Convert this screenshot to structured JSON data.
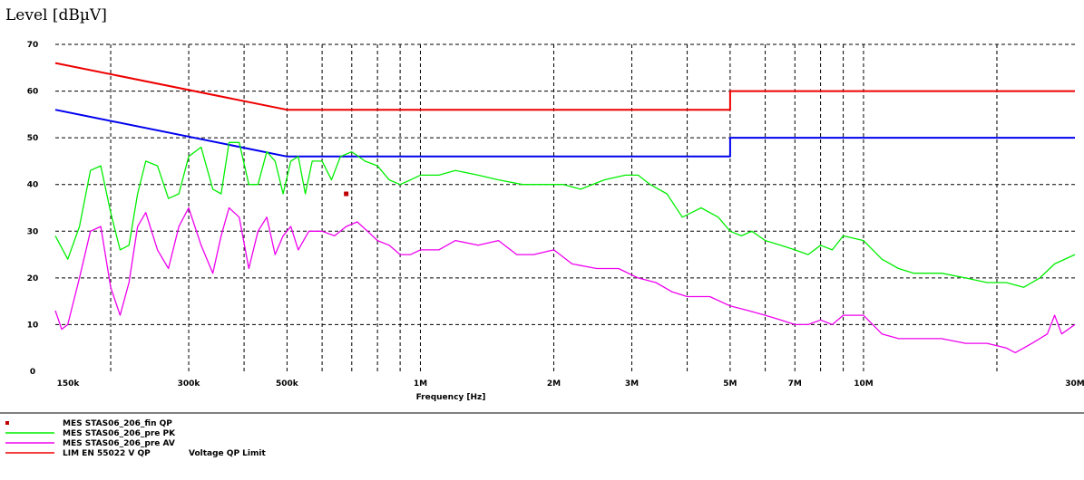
{
  "chart_data": {
    "type": "line",
    "title": "Level [dBµV]",
    "xlabel": "Frequency [Hz]",
    "x_scale": "log",
    "xlim_hz": [
      150000,
      30000000
    ],
    "ylim": [
      0,
      70
    ],
    "y_ticks": [
      0,
      10,
      20,
      30,
      40,
      50,
      60,
      70
    ],
    "x_ticks": [
      {
        "hz": 150000,
        "label": "150k"
      },
      {
        "hz": 300000,
        "label": "300k"
      },
      {
        "hz": 500000,
        "label": "500k"
      },
      {
        "hz": 1000000,
        "label": "1M"
      },
      {
        "hz": 2000000,
        "label": "2M"
      },
      {
        "hz": 3000000,
        "label": "3M"
      },
      {
        "hz": 5000000,
        "label": "5M"
      },
      {
        "hz": 7000000,
        "label": "7M"
      },
      {
        "hz": 10000000,
        "label": "10M"
      },
      {
        "hz": 30000000,
        "label": "30M"
      }
    ],
    "grid": true,
    "series": [
      {
        "name": "MES STAS06_206_fin QP",
        "kind": "marker",
        "color": "#c00000",
        "points": [
          [
            680000,
            38
          ]
        ]
      },
      {
        "name": "MES STAS06_206_pre PK",
        "kind": "line",
        "color": "#00ee00",
        "points": [
          [
            150000,
            29
          ],
          [
            160000,
            24
          ],
          [
            170000,
            31
          ],
          [
            180000,
            43
          ],
          [
            190000,
            44
          ],
          [
            200000,
            34
          ],
          [
            210000,
            26
          ],
          [
            220000,
            27
          ],
          [
            230000,
            38
          ],
          [
            240000,
            45
          ],
          [
            255000,
            44
          ],
          [
            270000,
            37
          ],
          [
            285000,
            38
          ],
          [
            300000,
            46
          ],
          [
            320000,
            48
          ],
          [
            340000,
            39
          ],
          [
            355000,
            38
          ],
          [
            370000,
            49
          ],
          [
            390000,
            49
          ],
          [
            410000,
            40
          ],
          [
            430000,
            40
          ],
          [
            450000,
            47
          ],
          [
            470000,
            45
          ],
          [
            490000,
            38
          ],
          [
            510000,
            45
          ],
          [
            530000,
            46
          ],
          [
            550000,
            38
          ],
          [
            570000,
            45
          ],
          [
            600000,
            45
          ],
          [
            630000,
            41
          ],
          [
            660000,
            46
          ],
          [
            700000,
            47
          ],
          [
            750000,
            45
          ],
          [
            800000,
            44
          ],
          [
            850000,
            41
          ],
          [
            900000,
            40
          ],
          [
            950000,
            41
          ],
          [
            1000000,
            42
          ],
          [
            1100000,
            42
          ],
          [
            1200000,
            43
          ],
          [
            1350000,
            42
          ],
          [
            1500000,
            41
          ],
          [
            1700000,
            40
          ],
          [
            1900000,
            40
          ],
          [
            2100000,
            40
          ],
          [
            2300000,
            39
          ],
          [
            2600000,
            41
          ],
          [
            2900000,
            42
          ],
          [
            3100000,
            42
          ],
          [
            3300000,
            40
          ],
          [
            3600000,
            38
          ],
          [
            3900000,
            33
          ],
          [
            4300000,
            35
          ],
          [
            4700000,
            33
          ],
          [
            5000000,
            30
          ],
          [
            5300000,
            29
          ],
          [
            5600000,
            30
          ],
          [
            6000000,
            28
          ],
          [
            6500000,
            27
          ],
          [
            7000000,
            26
          ],
          [
            7500000,
            25
          ],
          [
            8000000,
            27
          ],
          [
            8500000,
            26
          ],
          [
            9000000,
            29
          ],
          [
            10000000,
            28
          ],
          [
            11000000,
            24
          ],
          [
            12000000,
            22
          ],
          [
            13000000,
            21
          ],
          [
            15000000,
            21
          ],
          [
            17000000,
            20
          ],
          [
            19000000,
            19
          ],
          [
            21000000,
            19
          ],
          [
            23000000,
            18
          ],
          [
            25000000,
            20
          ],
          [
            27000000,
            23
          ],
          [
            30000000,
            25
          ]
        ]
      },
      {
        "name": "MES STAS06_206_pre AV",
        "kind": "line",
        "color": "#ee00ee",
        "points": [
          [
            150000,
            13
          ],
          [
            155000,
            9
          ],
          [
            160000,
            10
          ],
          [
            170000,
            20
          ],
          [
            180000,
            30
          ],
          [
            190000,
            31
          ],
          [
            200000,
            18
          ],
          [
            210000,
            12
          ],
          [
            220000,
            19
          ],
          [
            230000,
            31
          ],
          [
            240000,
            34
          ],
          [
            255000,
            26
          ],
          [
            270000,
            22
          ],
          [
            285000,
            31
          ],
          [
            300000,
            35
          ],
          [
            320000,
            27
          ],
          [
            340000,
            21
          ],
          [
            355000,
            29
          ],
          [
            370000,
            35
          ],
          [
            390000,
            33
          ],
          [
            410000,
            22
          ],
          [
            430000,
            30
          ],
          [
            450000,
            33
          ],
          [
            470000,
            25
          ],
          [
            490000,
            29
          ],
          [
            510000,
            31
          ],
          [
            530000,
            26
          ],
          [
            560000,
            30
          ],
          [
            600000,
            30
          ],
          [
            640000,
            29
          ],
          [
            680000,
            31
          ],
          [
            720000,
            32
          ],
          [
            760000,
            30
          ],
          [
            800000,
            28
          ],
          [
            850000,
            27
          ],
          [
            900000,
            25
          ],
          [
            950000,
            25
          ],
          [
            1000000,
            26
          ],
          [
            1100000,
            26
          ],
          [
            1200000,
            28
          ],
          [
            1350000,
            27
          ],
          [
            1500000,
            28
          ],
          [
            1650000,
            25
          ],
          [
            1800000,
            25
          ],
          [
            2000000,
            26
          ],
          [
            2200000,
            23
          ],
          [
            2500000,
            22
          ],
          [
            2800000,
            22
          ],
          [
            3100000,
            20
          ],
          [
            3400000,
            19
          ],
          [
            3700000,
            17
          ],
          [
            4000000,
            16
          ],
          [
            4500000,
            16
          ],
          [
            5000000,
            14
          ],
          [
            5500000,
            13
          ],
          [
            6000000,
            12
          ],
          [
            6500000,
            11
          ],
          [
            7000000,
            10
          ],
          [
            7500000,
            10
          ],
          [
            8000000,
            11
          ],
          [
            8500000,
            10
          ],
          [
            9000000,
            12
          ],
          [
            10000000,
            12
          ],
          [
            11000000,
            8
          ],
          [
            12000000,
            7
          ],
          [
            13000000,
            7
          ],
          [
            15000000,
            7
          ],
          [
            17000000,
            6
          ],
          [
            19000000,
            6
          ],
          [
            21000000,
            5
          ],
          [
            22000000,
            4
          ],
          [
            24000000,
            6
          ],
          [
            26000000,
            8
          ],
          [
            27000000,
            12
          ],
          [
            28000000,
            8
          ],
          [
            30000000,
            10
          ]
        ]
      },
      {
        "name": "LIM EN 55022 V QP    Voltage QP Limit",
        "kind": "limit",
        "color": "#ee0000",
        "points": [
          [
            150000,
            66
          ],
          [
            500000,
            56
          ],
          [
            5000000,
            56
          ],
          [
            5000000,
            60
          ],
          [
            30000000,
            60
          ]
        ]
      },
      {
        "name": "",
        "kind": "limit",
        "color": "#0000ee",
        "points": [
          [
            150000,
            56
          ],
          [
            500000,
            46
          ],
          [
            5000000,
            46
          ],
          [
            5000000,
            50
          ],
          [
            30000000,
            50
          ]
        ]
      }
    ],
    "legend": {
      "placement": "bottom-left",
      "entries": [
        {
          "label": "MES STAS06_206_fin QP",
          "style": "marker",
          "color": "#c00000"
        },
        {
          "label": "MES STAS06_206_pre PK",
          "style": "line",
          "color": "#00ee00"
        },
        {
          "label": "MES STAS06_206_pre AV",
          "style": "line",
          "color": "#ee00ee"
        },
        {
          "label": "LIM EN 55022 V QP",
          "extra": "Voltage QP Limit",
          "style": "line",
          "color": "#ee0000"
        }
      ]
    }
  }
}
